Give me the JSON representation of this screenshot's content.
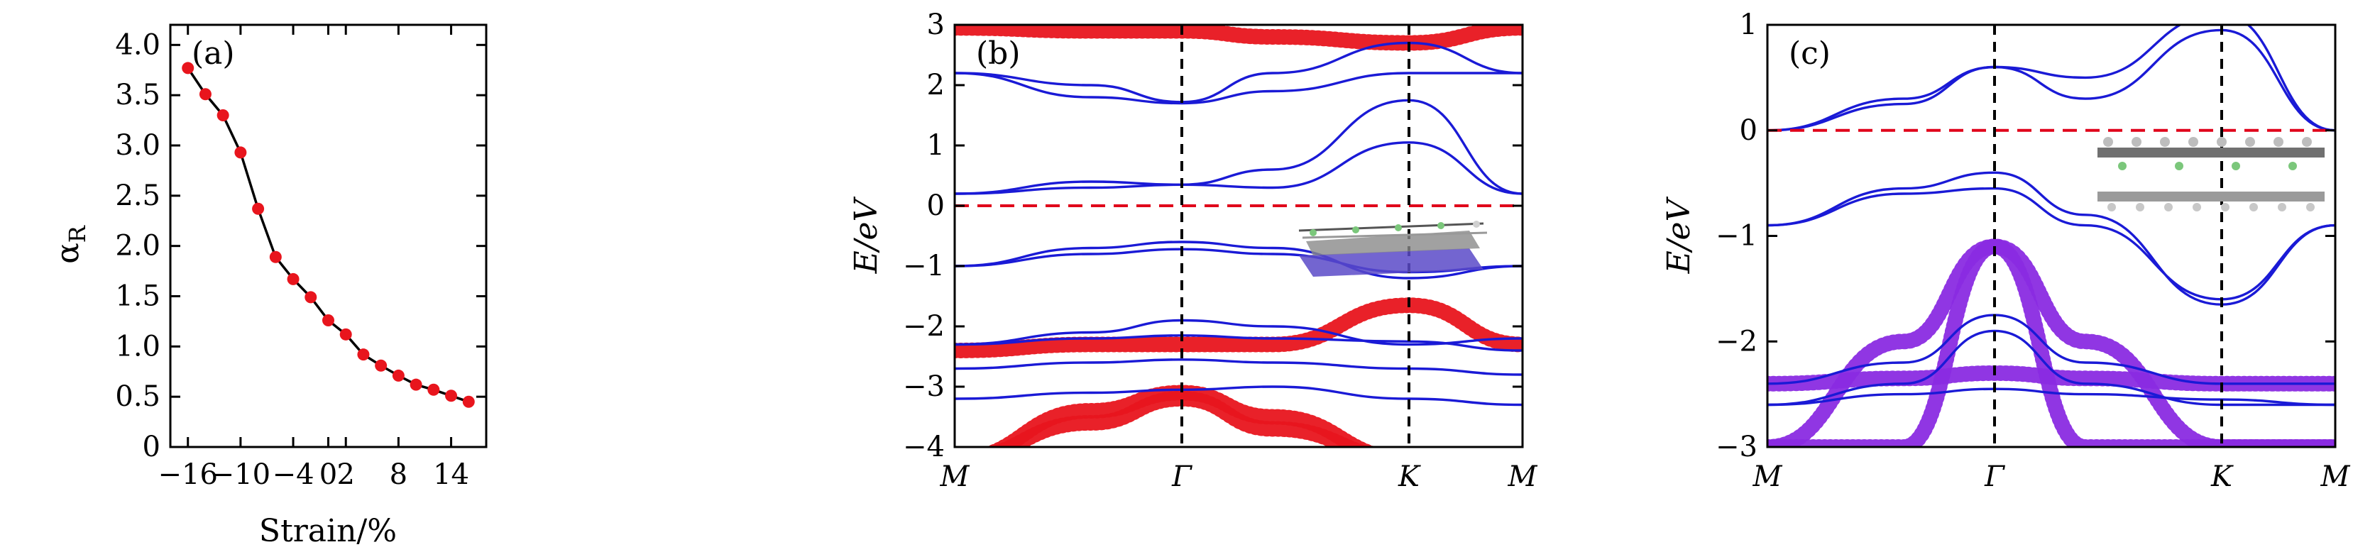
{
  "chart_data": [
    {
      "panel": "(a)",
      "type": "line",
      "xlabel": "Strain/%",
      "ylabel": "αR",
      "xlim": [
        -18,
        18
      ],
      "ylim": [
        0,
        4.2
      ],
      "xticks": [
        -16,
        -10,
        -4,
        0,
        2,
        8,
        14
      ],
      "xtick_labels": [
        "−16",
        "−10",
        "−4",
        "0",
        "2",
        "8",
        "14"
      ],
      "yticks": [
        0,
        0.5,
        1.0,
        1.5,
        2.0,
        2.5,
        3.0,
        3.5,
        4.0
      ],
      "ytick_labels": [
        "0",
        "0.5",
        "1.0",
        "1.5",
        "2.0",
        "2.5",
        "3.0",
        "3.5",
        "4.0"
      ],
      "x": [
        -16,
        -14,
        -12,
        -10,
        -8,
        -6,
        -4,
        -2,
        0,
        2,
        4,
        6,
        8,
        10,
        12,
        14,
        16
      ],
      "y": [
        3.77,
        3.51,
        3.3,
        2.93,
        2.37,
        1.89,
        1.67,
        1.49,
        1.26,
        1.12,
        0.92,
        0.81,
        0.71,
        0.62,
        0.57,
        0.51,
        0.45
      ],
      "marker_color": "#e8151d",
      "line_color": "#000000",
      "grid": false
    },
    {
      "panel": "(b)",
      "type": "line",
      "ylabel": "E/eV",
      "ylim": [
        -4,
        3
      ],
      "yticks": [
        -4,
        -3,
        -2,
        -1,
        0,
        1,
        2,
        3
      ],
      "ytick_labels": [
        "−4",
        "−3",
        "−2",
        "−1",
        "0",
        "1",
        "2",
        "3"
      ],
      "kpath": [
        "M",
        "Γ",
        "K",
        "M"
      ],
      "kpath_positions": [
        0,
        1,
        2,
        2.5
      ],
      "fermi_level": 0,
      "band_color": "#1a1ad6",
      "projection_color": "#e8151d",
      "inset": "atomic structure image",
      "bands": [
        [
          2.2,
          1.8,
          1.7,
          1.9,
          2.2,
          2.2
        ],
        [
          2.2,
          2.0,
          1.72,
          2.2,
          2.7,
          2.2
        ],
        [
          0.2,
          0.3,
          0.35,
          0.3,
          1.05,
          0.2
        ],
        [
          0.2,
          0.4,
          0.35,
          0.6,
          1.75,
          0.2
        ],
        [
          -1.0,
          -0.8,
          -0.72,
          -0.8,
          -1.1,
          -1.0
        ],
        [
          -1.0,
          -0.7,
          -0.6,
          -0.7,
          -1.2,
          -1.0
        ],
        [
          -2.3,
          -2.1,
          -1.9,
          -2.0,
          -2.3,
          -2.2
        ],
        [
          -2.3,
          -2.2,
          -2.15,
          -2.2,
          -2.25,
          -2.4
        ],
        [
          -2.7,
          -2.6,
          -2.55,
          -2.6,
          -2.7,
          -2.8
        ],
        [
          -3.2,
          -3.1,
          -3.05,
          -3.0,
          -3.2,
          -3.3
        ]
      ],
      "projected_bands": [
        [
          -2.4,
          -2.3,
          -2.3,
          -2.3,
          -1.65,
          -2.3
        ],
        [
          -4.2,
          -3.4,
          -3.1,
          -3.5,
          -4.2,
          -4.2
        ],
        [
          -4.2,
          -3.6,
          -3.2,
          -3.7,
          -4.2,
          -4.2
        ],
        [
          2.95,
          2.9,
          2.9,
          2.8,
          2.7,
          2.95
        ]
      ]
    },
    {
      "panel": "(c)",
      "type": "line",
      "ylabel": "E/eV",
      "ylim": [
        -3,
        1
      ],
      "yticks": [
        -3,
        -2,
        -1,
        0,
        1
      ],
      "ytick_labels": [
        "−3",
        "−2",
        "−1",
        "0",
        "1"
      ],
      "kpath": [
        "M",
        "Γ",
        "K",
        "M"
      ],
      "kpath_positions": [
        0,
        1,
        2,
        2.5
      ],
      "fermi_level": 0,
      "band_color": "#1a1ad6",
      "projection_color": "#8a2be2",
      "inset": "atomic structure image",
      "bands": [
        [
          0.0,
          0.3,
          0.6,
          0.3,
          0.95,
          0.0
        ],
        [
          0.0,
          0.25,
          0.6,
          0.5,
          1.1,
          0.0
        ],
        [
          -0.9,
          -0.6,
          -0.55,
          -0.9,
          -1.6,
          -0.9
        ],
        [
          -0.9,
          -0.55,
          -0.4,
          -0.8,
          -1.65,
          -0.9
        ],
        [
          -2.4,
          -2.2,
          -1.75,
          -2.2,
          -2.4,
          -2.4
        ],
        [
          -2.6,
          -2.4,
          -1.9,
          -2.4,
          -2.6,
          -2.6
        ],
        [
          -2.6,
          -2.5,
          -2.45,
          -2.5,
          -2.55,
          -2.6
        ]
      ],
      "projected_bands": [
        [
          -3.0,
          -2.0,
          -1.1,
          -2.0,
          -3.0,
          -3.0
        ],
        [
          -3.0,
          -3.0,
          -1.1,
          -3.0,
          -3.0,
          -3.0
        ],
        [
          -2.4,
          -2.35,
          -2.3,
          -2.35,
          -2.4,
          -2.4
        ]
      ]
    }
  ],
  "colors": {
    "band": "#1a1ad6",
    "red_projection": "#e8151d",
    "purple_projection": "#8a2be2",
    "fermi_line": "#e0001a",
    "axis": "#000000"
  }
}
